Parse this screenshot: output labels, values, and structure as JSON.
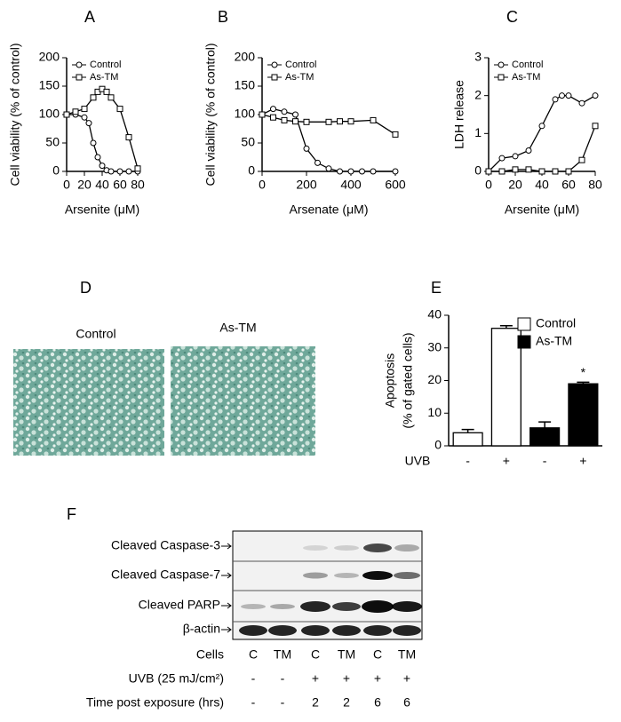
{
  "chart_data": [
    {
      "type": "line",
      "panel": "A",
      "xlabel": "Arsenite (μM)",
      "ylabel": "Cell viability (% of control)",
      "xlim": [
        0,
        80
      ],
      "xticks": [
        0,
        20,
        40,
        60,
        80
      ],
      "ylim": [
        0,
        200
      ],
      "yticks": [
        0,
        50,
        100,
        150,
        200
      ],
      "legend": "top-left",
      "series": [
        {
          "name": "Control",
          "color": "#000000",
          "marker": "circle",
          "x": [
            0,
            10,
            20,
            25,
            30,
            35,
            40,
            45,
            50,
            60,
            70,
            80
          ],
          "values": [
            100,
            100,
            95,
            85,
            50,
            25,
            10,
            2,
            0,
            0,
            0,
            0
          ]
        },
        {
          "name": "As-TM",
          "color": "#000000",
          "marker": "square",
          "x": [
            0,
            10,
            20,
            30,
            35,
            40,
            45,
            50,
            60,
            70,
            80
          ],
          "values": [
            100,
            105,
            110,
            130,
            140,
            145,
            140,
            130,
            110,
            60,
            5
          ]
        }
      ]
    },
    {
      "type": "line",
      "panel": "B",
      "xlabel": "Arsenate (μM)",
      "ylabel": "Cell viability (% of control)",
      "xlim": [
        0,
        600
      ],
      "xticks": [
        0,
        200,
        400,
        600
      ],
      "ylim": [
        0,
        200
      ],
      "yticks": [
        0,
        50,
        100,
        150,
        200
      ],
      "legend": "top-left",
      "series": [
        {
          "name": "Control",
          "color": "#000000",
          "marker": "circle",
          "x": [
            0,
            50,
            100,
            150,
            200,
            250,
            300,
            350,
            400,
            450,
            500,
            600
          ],
          "values": [
            100,
            110,
            105,
            100,
            40,
            15,
            5,
            0,
            0,
            0,
            0,
            0
          ]
        },
        {
          "name": "As-TM",
          "color": "#000000",
          "marker": "square",
          "x": [
            0,
            50,
            100,
            150,
            200,
            300,
            350,
            400,
            500,
            600
          ],
          "values": [
            100,
            95,
            90,
            88,
            87,
            87,
            88,
            88,
            90,
            65
          ]
        }
      ]
    },
    {
      "type": "line",
      "panel": "C",
      "xlabel": "Arsenite (μM)",
      "ylabel": "LDH release",
      "xlim": [
        0,
        80
      ],
      "xticks": [
        0,
        20,
        40,
        60,
        80
      ],
      "ylim": [
        0,
        3
      ],
      "yticks": [
        0,
        1,
        2,
        3
      ],
      "legend": "top-left",
      "series": [
        {
          "name": "Control",
          "color": "#000000",
          "marker": "circle",
          "x": [
            0,
            10,
            20,
            30,
            40,
            50,
            55,
            60,
            70,
            80
          ],
          "values": [
            0,
            0.35,
            0.4,
            0.55,
            1.2,
            1.9,
            2.0,
            2.0,
            1.8,
            2.0
          ]
        },
        {
          "name": "As-TM",
          "color": "#000000",
          "marker": "square",
          "x": [
            0,
            10,
            20,
            30,
            40,
            50,
            60,
            70,
            80
          ],
          "values": [
            0,
            0,
            0.05,
            0.05,
            0,
            0,
            0,
            0.3,
            1.2
          ]
        }
      ]
    },
    {
      "type": "bar",
      "panel": "E",
      "xlabel": "UVB",
      "ylabel": "Apoptosis",
      "ylabel_sub": "(% of gated cells)",
      "categories": [
        "-",
        "+",
        "-",
        "+"
      ],
      "ylim": [
        0,
        40
      ],
      "yticks": [
        0,
        10,
        20,
        30,
        40
      ],
      "legend": "top-right",
      "annotation": "*",
      "series": [
        {
          "name": "Control",
          "color": "#ffffff",
          "values": [
            4,
            36,
            null,
            null
          ],
          "errors": [
            1,
            0.8,
            null,
            null
          ]
        },
        {
          "name": "As-TM",
          "color": "#000000",
          "values": [
            null,
            null,
            5.5,
            19
          ],
          "errors": [
            null,
            null,
            1.8,
            0.5
          ]
        }
      ]
    }
  ],
  "micrographs": {
    "panel": "D",
    "images": [
      "Control",
      "As-TM"
    ]
  },
  "blot": {
    "panel": "F",
    "rows": [
      "Cleaved Caspase-3",
      "Cleaved Caspase-7",
      "Cleaved PARP",
      "β-actin"
    ],
    "conditions": [
      {
        "label": "Cells",
        "values": [
          "C",
          "TM",
          "C",
          "TM",
          "C",
          "TM"
        ]
      },
      {
        "label": "UVB (25 mJ/cm²)",
        "values": [
          "-",
          "-",
          "+",
          "+",
          "+",
          "+"
        ]
      },
      {
        "label": "Time post exposure (hrs)",
        "values": [
          "-",
          "-",
          "2",
          "2",
          "6",
          "6"
        ]
      }
    ]
  }
}
